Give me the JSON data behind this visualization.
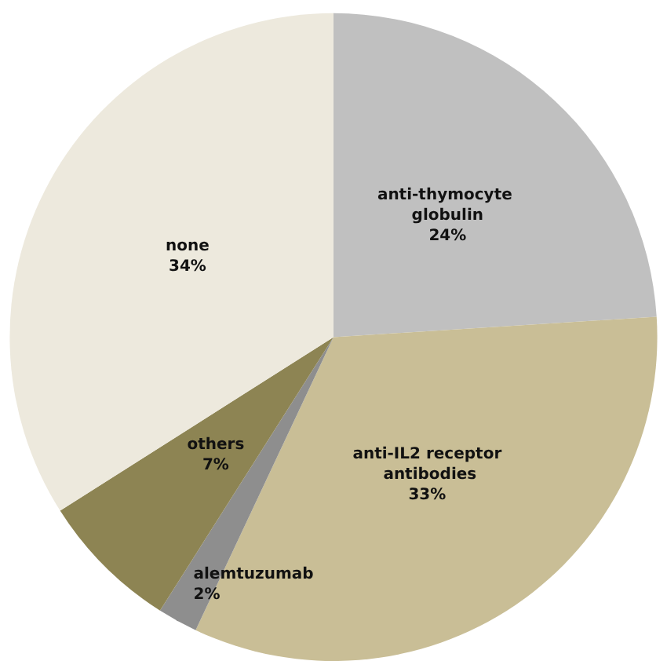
{
  "chart_data": {
    "type": "pie",
    "categories": [
      "anti-thymocyte globulin",
      "anti-IL2 receptor antibodies",
      "alemtuzumab",
      "others",
      "none"
    ],
    "values": [
      24,
      33,
      2,
      7,
      34
    ],
    "colors": [
      "#c0c0c0",
      "#c9be96",
      "#8e8e8e",
      "#8d8453",
      "#ede9dd"
    ],
    "value_labels": [
      "24%",
      "33%",
      "2%",
      "7%",
      "34%"
    ],
    "legend": false
  }
}
